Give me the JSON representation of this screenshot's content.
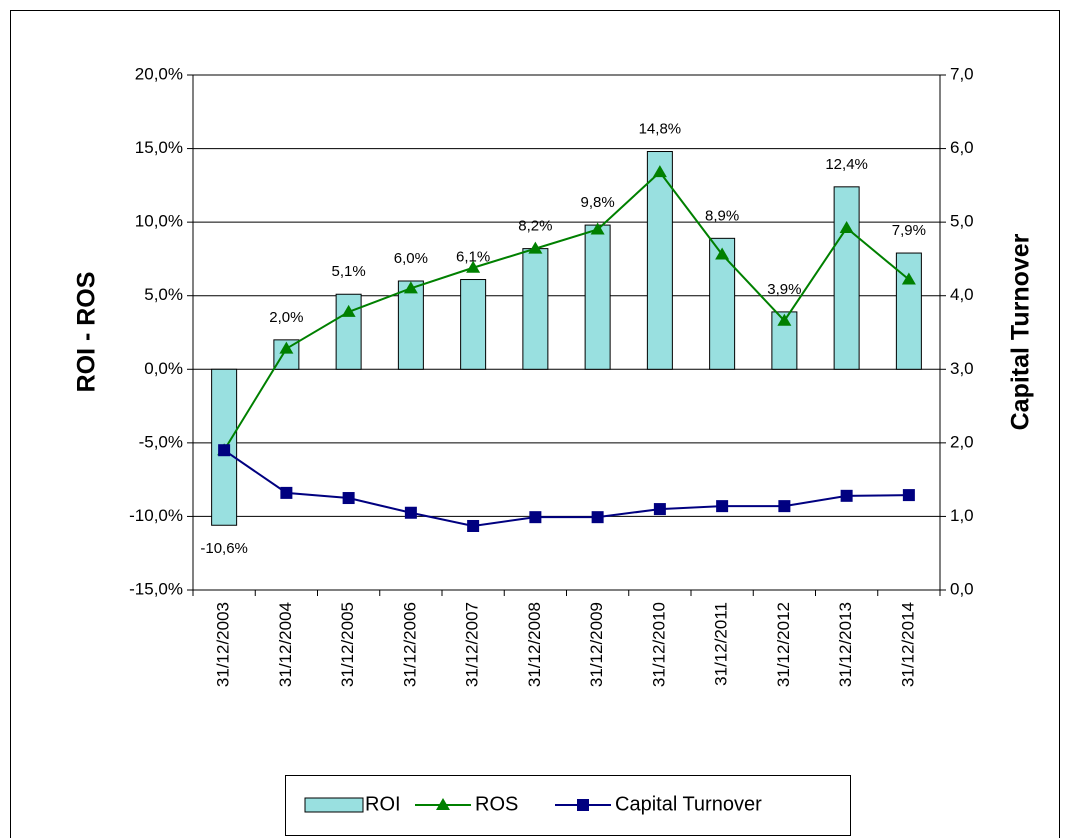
{
  "chart_data": {
    "type": "bar",
    "y_label": "ROI - ROS",
    "y2_label": "Capital Turnover",
    "categories": [
      "31/12/2003",
      "31/12/2004",
      "31/12/2005",
      "31/12/2006",
      "31/12/2007",
      "31/12/2008",
      "31/12/2009",
      "31/12/2010",
      "31/12/2011",
      "31/12/2012",
      "31/12/2013",
      "31/12/2014"
    ],
    "series": [
      {
        "name": "ROI",
        "type": "bar",
        "color": "#99e0e0",
        "axis": "y",
        "values": [
          -10.6,
          2.0,
          5.1,
          6.0,
          6.1,
          8.2,
          9.8,
          14.8,
          8.9,
          3.9,
          12.4,
          7.9
        ],
        "value_labels": [
          "-10,6%",
          "2,0%",
          "5,1%",
          "6,0%",
          "6,1%",
          "8,2%",
          "9,8%",
          "14,8%",
          "8,9%",
          "3,9%",
          "12,4%",
          "7,9%"
        ]
      },
      {
        "name": "ROS",
        "type": "line",
        "color": "#008000",
        "marker": "triangle",
        "axis": "y",
        "values": [
          -5.5,
          1.4,
          3.9,
          5.5,
          6.9,
          8.2,
          9.5,
          13.4,
          7.8,
          3.3,
          9.6,
          6.1
        ]
      },
      {
        "name": "Capital Turnover",
        "type": "line",
        "color": "#000080",
        "marker": "square",
        "axis": "y2",
        "values": [
          1.9,
          1.32,
          1.25,
          1.05,
          0.87,
          0.99,
          0.99,
          1.1,
          1.14,
          1.14,
          1.28,
          1.29
        ]
      }
    ],
    "ylim": [
      -15,
      20
    ],
    "yticks": [
      {
        "value": -15,
        "label": "-15,0%"
      },
      {
        "value": -10,
        "label": "-10,0%"
      },
      {
        "value": -5,
        "label": "-5,0%"
      },
      {
        "value": 0,
        "label": "0,0%"
      },
      {
        "value": 5,
        "label": "5,0%"
      },
      {
        "value": 10,
        "label": "10,0%"
      },
      {
        "value": 15,
        "label": "15,0%"
      },
      {
        "value": 20,
        "label": "20,0%"
      }
    ],
    "y2lim": [
      0,
      7
    ],
    "y2ticks": [
      {
        "value": 0,
        "label": "0,0"
      },
      {
        "value": 1,
        "label": "1,0"
      },
      {
        "value": 2,
        "label": "2,0"
      },
      {
        "value": 3,
        "label": "3,0"
      },
      {
        "value": 4,
        "label": "4,0"
      },
      {
        "value": 5,
        "label": "5,0"
      },
      {
        "value": 6,
        "label": "6,0"
      },
      {
        "value": 7,
        "label": "7,0"
      }
    ],
    "grid": true,
    "legend": "bottom"
  }
}
